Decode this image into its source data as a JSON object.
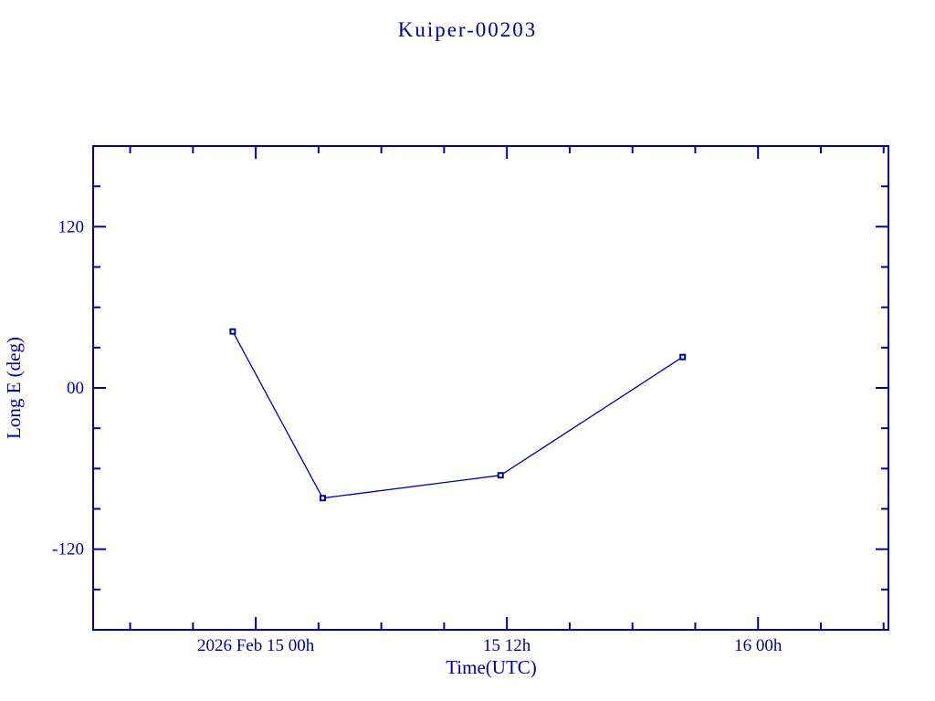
{
  "colors": {
    "ink": "#000099",
    "background": "#ffffff"
  },
  "chart_data": {
    "type": "line",
    "title": "Kuiper-00203",
    "xlabel": "Time(UTC)",
    "ylabel": "Long E (deg)",
    "x_unit": "hours since 2026 Feb 15 00h UTC",
    "x": [
      -1.1,
      3.2,
      11.7,
      20.4
    ],
    "y": [
      42,
      -82,
      -65,
      23
    ],
    "point_times_utc": [
      "2026 Feb 14 ~22:54",
      "2026 Feb 15 ~03:12",
      "2026 Feb 15 ~11:42",
      "2026 Feb 15 ~20:24"
    ],
    "xlim": [
      -7.77,
      30.23
    ],
    "ylim": [
      -180,
      180
    ],
    "x_major_ticks": [
      0,
      12,
      24
    ],
    "x_major_labels": [
      "2026 Feb 15  00h",
      "15  12h",
      "16  00h"
    ],
    "x_minor_ticks": [
      -6,
      -3,
      3,
      6,
      9,
      15,
      18,
      21,
      27,
      30
    ],
    "y_major_ticks": [
      120,
      0,
      -120
    ],
    "y_major_labels": [
      "120",
      "00",
      "-120"
    ],
    "y_minor_ticks": [
      -150,
      -90,
      -60,
      -30,
      30,
      60,
      90,
      150
    ],
    "grid": false,
    "legend": null,
    "marker": "open-square",
    "line_color": "#000099",
    "tick_style": "inward-all-sides"
  }
}
